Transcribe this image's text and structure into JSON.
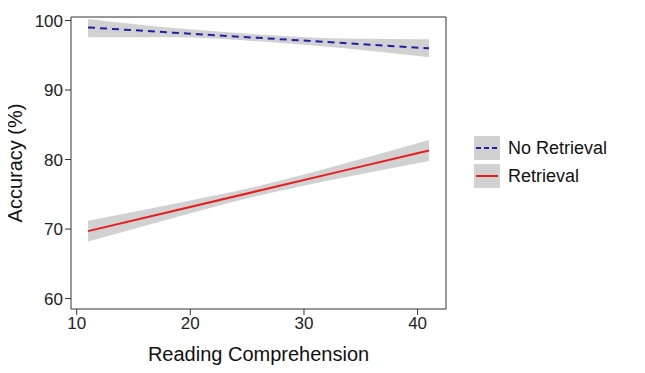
{
  "chart_data": {
    "type": "line",
    "x_label": "Reading Comprehension",
    "y_label": "Accuracy (%)",
    "x": [
      11,
      18.5,
      26,
      33.5,
      41
    ],
    "xlim": [
      9.5,
      42.5
    ],
    "xticks": [
      10,
      20,
      30,
      40
    ],
    "ylim": [
      58.5,
      100.5
    ],
    "yticks": [
      60,
      70,
      80,
      90,
      100
    ],
    "grid": false,
    "legend": "right",
    "series": [
      {
        "name": "No Retrieval",
        "color": "#1f1fa8",
        "line_style": "dashed",
        "values": [
          99,
          98.25,
          97.5,
          96.75,
          96
        ],
        "lower": [
          97.6,
          97.6,
          97.0,
          96.0,
          94.7
        ],
        "upper": [
          100.2,
          98.9,
          98.0,
          97.4,
          97.3
        ]
      },
      {
        "name": "Retrieval",
        "color": "#e81c1c",
        "line_style": "solid",
        "values": [
          69.7,
          72.6,
          75.5,
          78.4,
          81.3
        ],
        "lower": [
          68.2,
          71.6,
          74.8,
          77.4,
          79.8
        ],
        "upper": [
          71.2,
          73.6,
          76.2,
          79.4,
          82.8
        ]
      }
    ]
  }
}
